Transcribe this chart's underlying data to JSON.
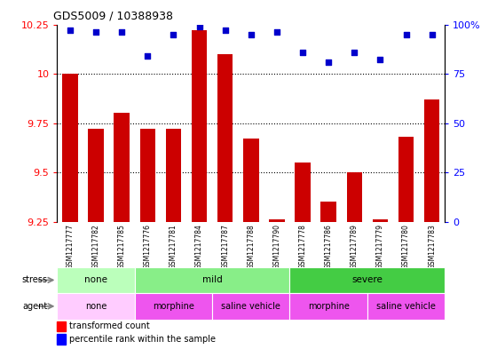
{
  "title": "GDS5009 / 10388938",
  "samples": [
    "GSM1217777",
    "GSM1217782",
    "GSM1217785",
    "GSM1217776",
    "GSM1217781",
    "GSM1217784",
    "GSM1217787",
    "GSM1217788",
    "GSM1217790",
    "GSM1217778",
    "GSM1217786",
    "GSM1217789",
    "GSM1217779",
    "GSM1217780",
    "GSM1217783"
  ],
  "transformed_count": [
    10.0,
    9.72,
    9.8,
    9.72,
    9.72,
    10.22,
    10.1,
    9.67,
    9.26,
    9.55,
    9.35,
    9.5,
    9.26,
    9.68,
    9.87
  ],
  "percentile_rank": [
    97,
    96,
    96,
    84,
    95,
    99,
    97,
    95,
    96,
    86,
    81,
    86,
    82,
    95,
    95
  ],
  "ylim_left": [
    9.25,
    10.25
  ],
  "ylim_right": [
    0,
    100
  ],
  "yticks_left": [
    9.25,
    9.5,
    9.75,
    10.0,
    10.25
  ],
  "yticks_right": [
    0,
    25,
    50,
    75,
    100
  ],
  "ytick_labels_left": [
    "9.25",
    "9.5",
    "9.75",
    "10",
    "10.25"
  ],
  "ytick_labels_right": [
    "0",
    "25",
    "50",
    "75",
    "100%"
  ],
  "bar_color": "#cc0000",
  "dot_color": "#0000cc",
  "bar_bottom": 9.25,
  "stress_groups": [
    {
      "label": "none",
      "start": 0,
      "end": 3,
      "color": "#bbffbb"
    },
    {
      "label": "mild",
      "start": 3,
      "end": 9,
      "color": "#88ee88"
    },
    {
      "label": "severe",
      "start": 9,
      "end": 15,
      "color": "#44cc44"
    }
  ],
  "agent_groups": [
    {
      "label": "none",
      "start": 0,
      "end": 3,
      "color": "#ffccff"
    },
    {
      "label": "morphine",
      "start": 3,
      "end": 6,
      "color": "#ee66ee"
    },
    {
      "label": "saline vehicle",
      "start": 6,
      "end": 9,
      "color": "#ee66ee"
    },
    {
      "label": "morphine",
      "start": 9,
      "end": 12,
      "color": "#ee66ee"
    },
    {
      "label": "saline vehicle",
      "start": 12,
      "end": 15,
      "color": "#ee66ee"
    }
  ],
  "stress_label": "stress",
  "agent_label": "agent",
  "legend1": "transformed count",
  "legend2": "percentile rank within the sample",
  "grid_color": "#555555",
  "xtick_bg": "#d8d8d8",
  "fig_bg": "#ffffff"
}
